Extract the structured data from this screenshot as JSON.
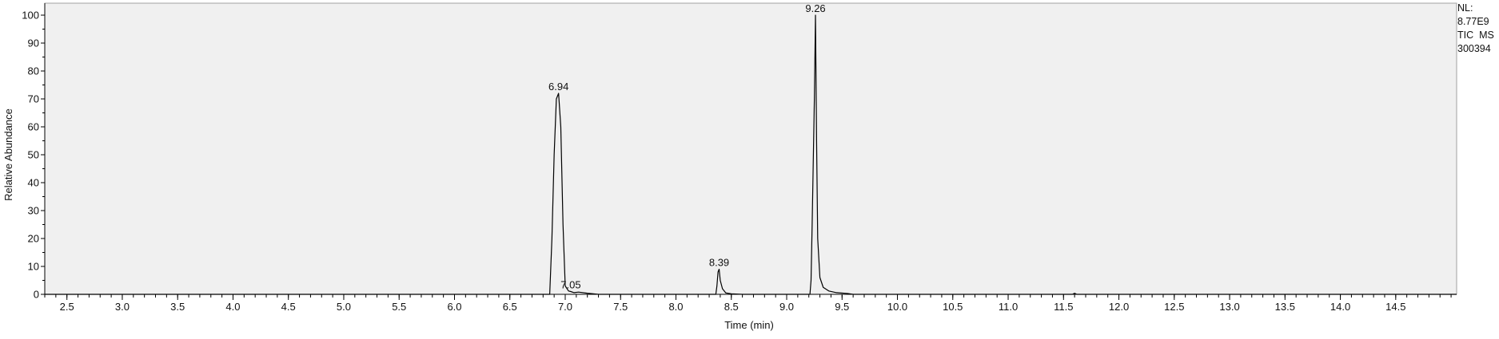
{
  "info_box": {
    "nl_label": "NL:",
    "nl_value": "8.77E9",
    "trace": "TIC  MS",
    "sample": "300394"
  },
  "chart_data": {
    "type": "line",
    "title": "",
    "xlabel": "Time (min)",
    "ylabel": "Relative Abundance",
    "xlim": [
      2.3,
      15.05
    ],
    "ylim": [
      0,
      100
    ],
    "x_ticks": [
      2.5,
      3.0,
      3.5,
      4.0,
      4.5,
      5.0,
      5.5,
      6.0,
      6.5,
      7.0,
      7.5,
      8.0,
      8.5,
      9.0,
      9.5,
      10.0,
      10.5,
      11.0,
      11.5,
      12.0,
      12.5,
      13.0,
      13.5,
      14.0,
      14.5
    ],
    "x_tick_labels": [
      "2.5",
      "3.0",
      "3.5",
      "4.0",
      "4.5",
      "5.0",
      "5.5",
      "6.0",
      "6.5",
      "7.0",
      "7.5",
      "8.0",
      "8.5",
      "9.0",
      "9.5",
      "10.0",
      "10.5",
      "11.0",
      "11.5",
      "12.0",
      "12.5",
      "13.0",
      "13.5",
      "14.0",
      "14.5"
    ],
    "y_ticks": [
      0,
      10,
      20,
      30,
      40,
      50,
      60,
      70,
      80,
      90,
      100
    ],
    "y_tick_labels": [
      "0",
      "10",
      "20",
      "30",
      "40",
      "50",
      "60",
      "70",
      "80",
      "90",
      "100"
    ],
    "grid": false,
    "background_color": "#f0f0f0",
    "line_color": "#000000",
    "series": [
      {
        "x": [
          2.3,
          6.86,
          6.88,
          6.9,
          6.92,
          6.94,
          6.96,
          6.98,
          7.0,
          7.03,
          7.05,
          7.08,
          7.12,
          7.2,
          7.3,
          8.36,
          8.37,
          8.38,
          8.39,
          8.4,
          8.42,
          8.45,
          8.5,
          8.6,
          9.21,
          9.22,
          9.23,
          9.25,
          9.26,
          9.27,
          9.28,
          9.3,
          9.33,
          9.38,
          9.45,
          9.55,
          9.6,
          11.58,
          11.6,
          11.62,
          15.05
        ],
        "y": [
          0,
          0,
          20,
          50,
          70,
          72,
          60,
          25,
          3,
          1.2,
          1.0,
          0.6,
          0.8,
          0.4,
          0,
          0,
          3,
          8,
          9,
          5,
          2,
          0.5,
          0.2,
          0,
          0,
          5,
          25,
          70,
          100,
          55,
          20,
          6,
          2.5,
          1.2,
          0.6,
          0.3,
          0,
          0,
          0.4,
          0,
          0
        ]
      }
    ],
    "annotations": [
      {
        "x": 6.94,
        "y": 72,
        "text": "6.94"
      },
      {
        "x": 7.05,
        "y": 1.0,
        "text": "7.05"
      },
      {
        "x": 8.39,
        "y": 9,
        "text": "8.39"
      },
      {
        "x": 9.26,
        "y": 100,
        "text": "9.26"
      }
    ]
  }
}
